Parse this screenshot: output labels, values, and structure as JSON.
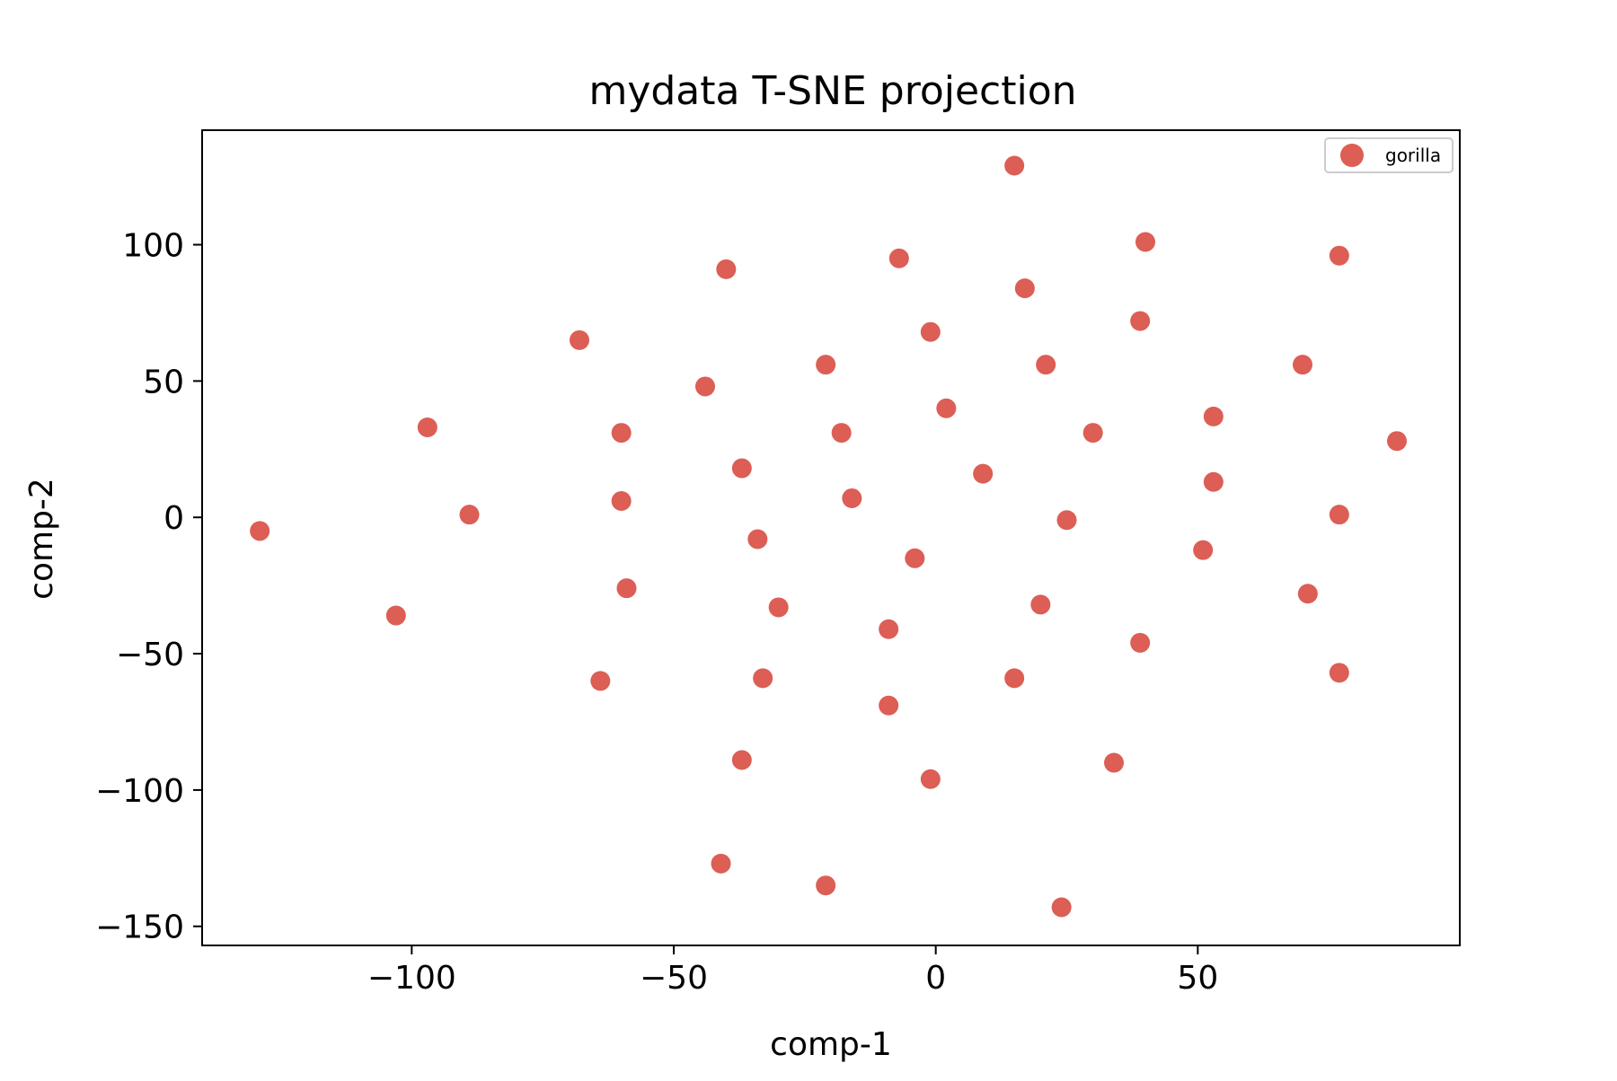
{
  "chart_data": {
    "type": "scatter",
    "title": "mydata T-SNE projection",
    "xlabel": "comp-1",
    "ylabel": "comp-2",
    "xlim": [
      -140,
      100
    ],
    "ylim": [
      -157,
      142
    ],
    "xticks": [
      -100,
      -50,
      0,
      50
    ],
    "xtick_labels": [
      "−100",
      "−50",
      "0",
      "50"
    ],
    "yticks": [
      -150,
      -100,
      -50,
      0,
      50,
      100
    ],
    "ytick_labels": [
      "−150",
      "−100",
      "−50",
      "0",
      "50",
      "100"
    ],
    "grid": false,
    "legend_position": "top-right",
    "series": [
      {
        "name": "gorilla",
        "color": "#dc5e55",
        "points": [
          [
            -129,
            -5
          ],
          [
            -103,
            -36
          ],
          [
            -97,
            33
          ],
          [
            -89,
            1
          ],
          [
            -68,
            65
          ],
          [
            -64,
            -60
          ],
          [
            -60,
            31
          ],
          [
            -60,
            6
          ],
          [
            -59,
            -26
          ],
          [
            -44,
            48
          ],
          [
            -40,
            91
          ],
          [
            -37,
            18
          ],
          [
            -37,
            -89
          ],
          [
            -41,
            -127
          ],
          [
            -34,
            -8
          ],
          [
            -33,
            -59
          ],
          [
            -30,
            -33
          ],
          [
            -21,
            56
          ],
          [
            -18,
            31
          ],
          [
            -16,
            7
          ],
          [
            -21,
            -135
          ],
          [
            -9,
            -41
          ],
          [
            -9,
            -69
          ],
          [
            -7,
            95
          ],
          [
            -4,
            -15
          ],
          [
            -1,
            68
          ],
          [
            -1,
            -96
          ],
          [
            2,
            40
          ],
          [
            9,
            16
          ],
          [
            15,
            129
          ],
          [
            15,
            -59
          ],
          [
            17,
            84
          ],
          [
            21,
            56
          ],
          [
            20,
            -32
          ],
          [
            25,
            -1
          ],
          [
            24,
            -143
          ],
          [
            30,
            31
          ],
          [
            34,
            -90
          ],
          [
            39,
            72
          ],
          [
            39,
            -46
          ],
          [
            40,
            101
          ],
          [
            51,
            -12
          ],
          [
            53,
            37
          ],
          [
            53,
            13
          ],
          [
            70,
            56
          ],
          [
            71,
            -28
          ],
          [
            77,
            96
          ],
          [
            77,
            1
          ],
          [
            77,
            -57
          ],
          [
            88,
            28
          ]
        ]
      }
    ]
  }
}
